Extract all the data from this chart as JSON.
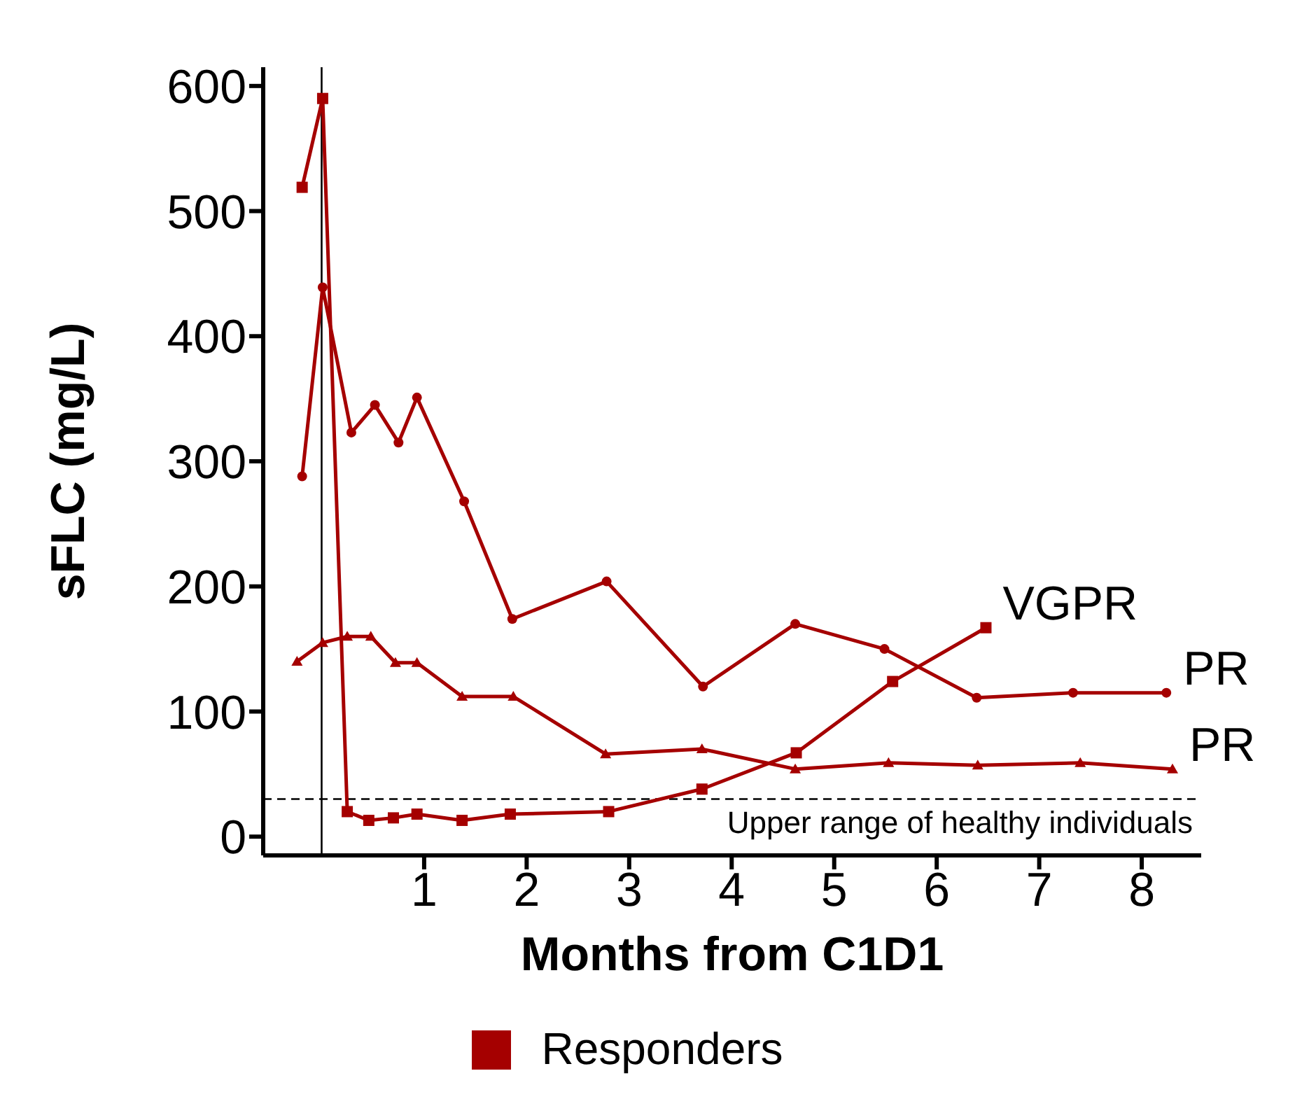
{
  "chart_data": {
    "type": "line",
    "xlabel": "Months from C1D1",
    "ylabel": "sFLC (mg/L)",
    "xlim": [
      -0.57,
      8.58
    ],
    "xticks": [
      1,
      2,
      3,
      4,
      5,
      6,
      7,
      8
    ],
    "ylim": [
      -15,
      615
    ],
    "yticks": [
      0,
      100,
      200,
      300,
      400,
      500,
      600
    ],
    "grid": false,
    "legend": "bottom",
    "series": [
      {
        "name": "Responders",
        "color": "#a50000",
        "marker": "square",
        "x": [
          -0.19,
          0.01,
          0.25,
          0.46,
          0.7,
          0.93,
          1.37,
          1.84,
          2.8,
          3.71,
          4.63,
          5.57,
          6.48
        ],
        "values": [
          519,
          590,
          20,
          13,
          15,
          18,
          13,
          18,
          20,
          38,
          67,
          124,
          167
        ]
      },
      {
        "color": "#a50000",
        "marker": "circle",
        "x": [
          -0.19,
          0.01,
          0.29,
          0.52,
          0.75,
          0.93,
          1.39,
          1.86,
          2.78,
          3.72,
          4.62,
          5.49,
          6.39,
          7.33,
          8.24
        ],
        "values": [
          288,
          439,
          323,
          345,
          315,
          351,
          268,
          174,
          204,
          120,
          170,
          150,
          111,
          115,
          115
        ]
      },
      {
        "color": "#a50000",
        "marker": "triangle",
        "x": [
          -0.24,
          0.01,
          0.25,
          0.48,
          0.72,
          0.93,
          1.37,
          1.87,
          2.77,
          3.71,
          4.62,
          5.53,
          6.4,
          7.4,
          8.3
        ],
        "values": [
          140,
          155,
          160,
          160,
          139,
          139,
          112,
          112,
          66,
          70,
          54,
          59,
          57,
          59,
          54
        ]
      }
    ],
    "ref_lines": [
      {
        "axis": "y",
        "value": 30,
        "label": "Upper range of healthy individuals",
        "color": "#000000",
        "line_style": "dashed"
      },
      {
        "axis": "x",
        "value": 0,
        "color": "#000000",
        "line_style": "solid"
      }
    ],
    "annotations": [
      {
        "text": "VGPR",
        "x": 6.48,
        "y": 167
      },
      {
        "text": "PR",
        "x": 8.24,
        "y": 115
      },
      {
        "text": "PR",
        "x": 8.3,
        "y": 54
      }
    ]
  }
}
